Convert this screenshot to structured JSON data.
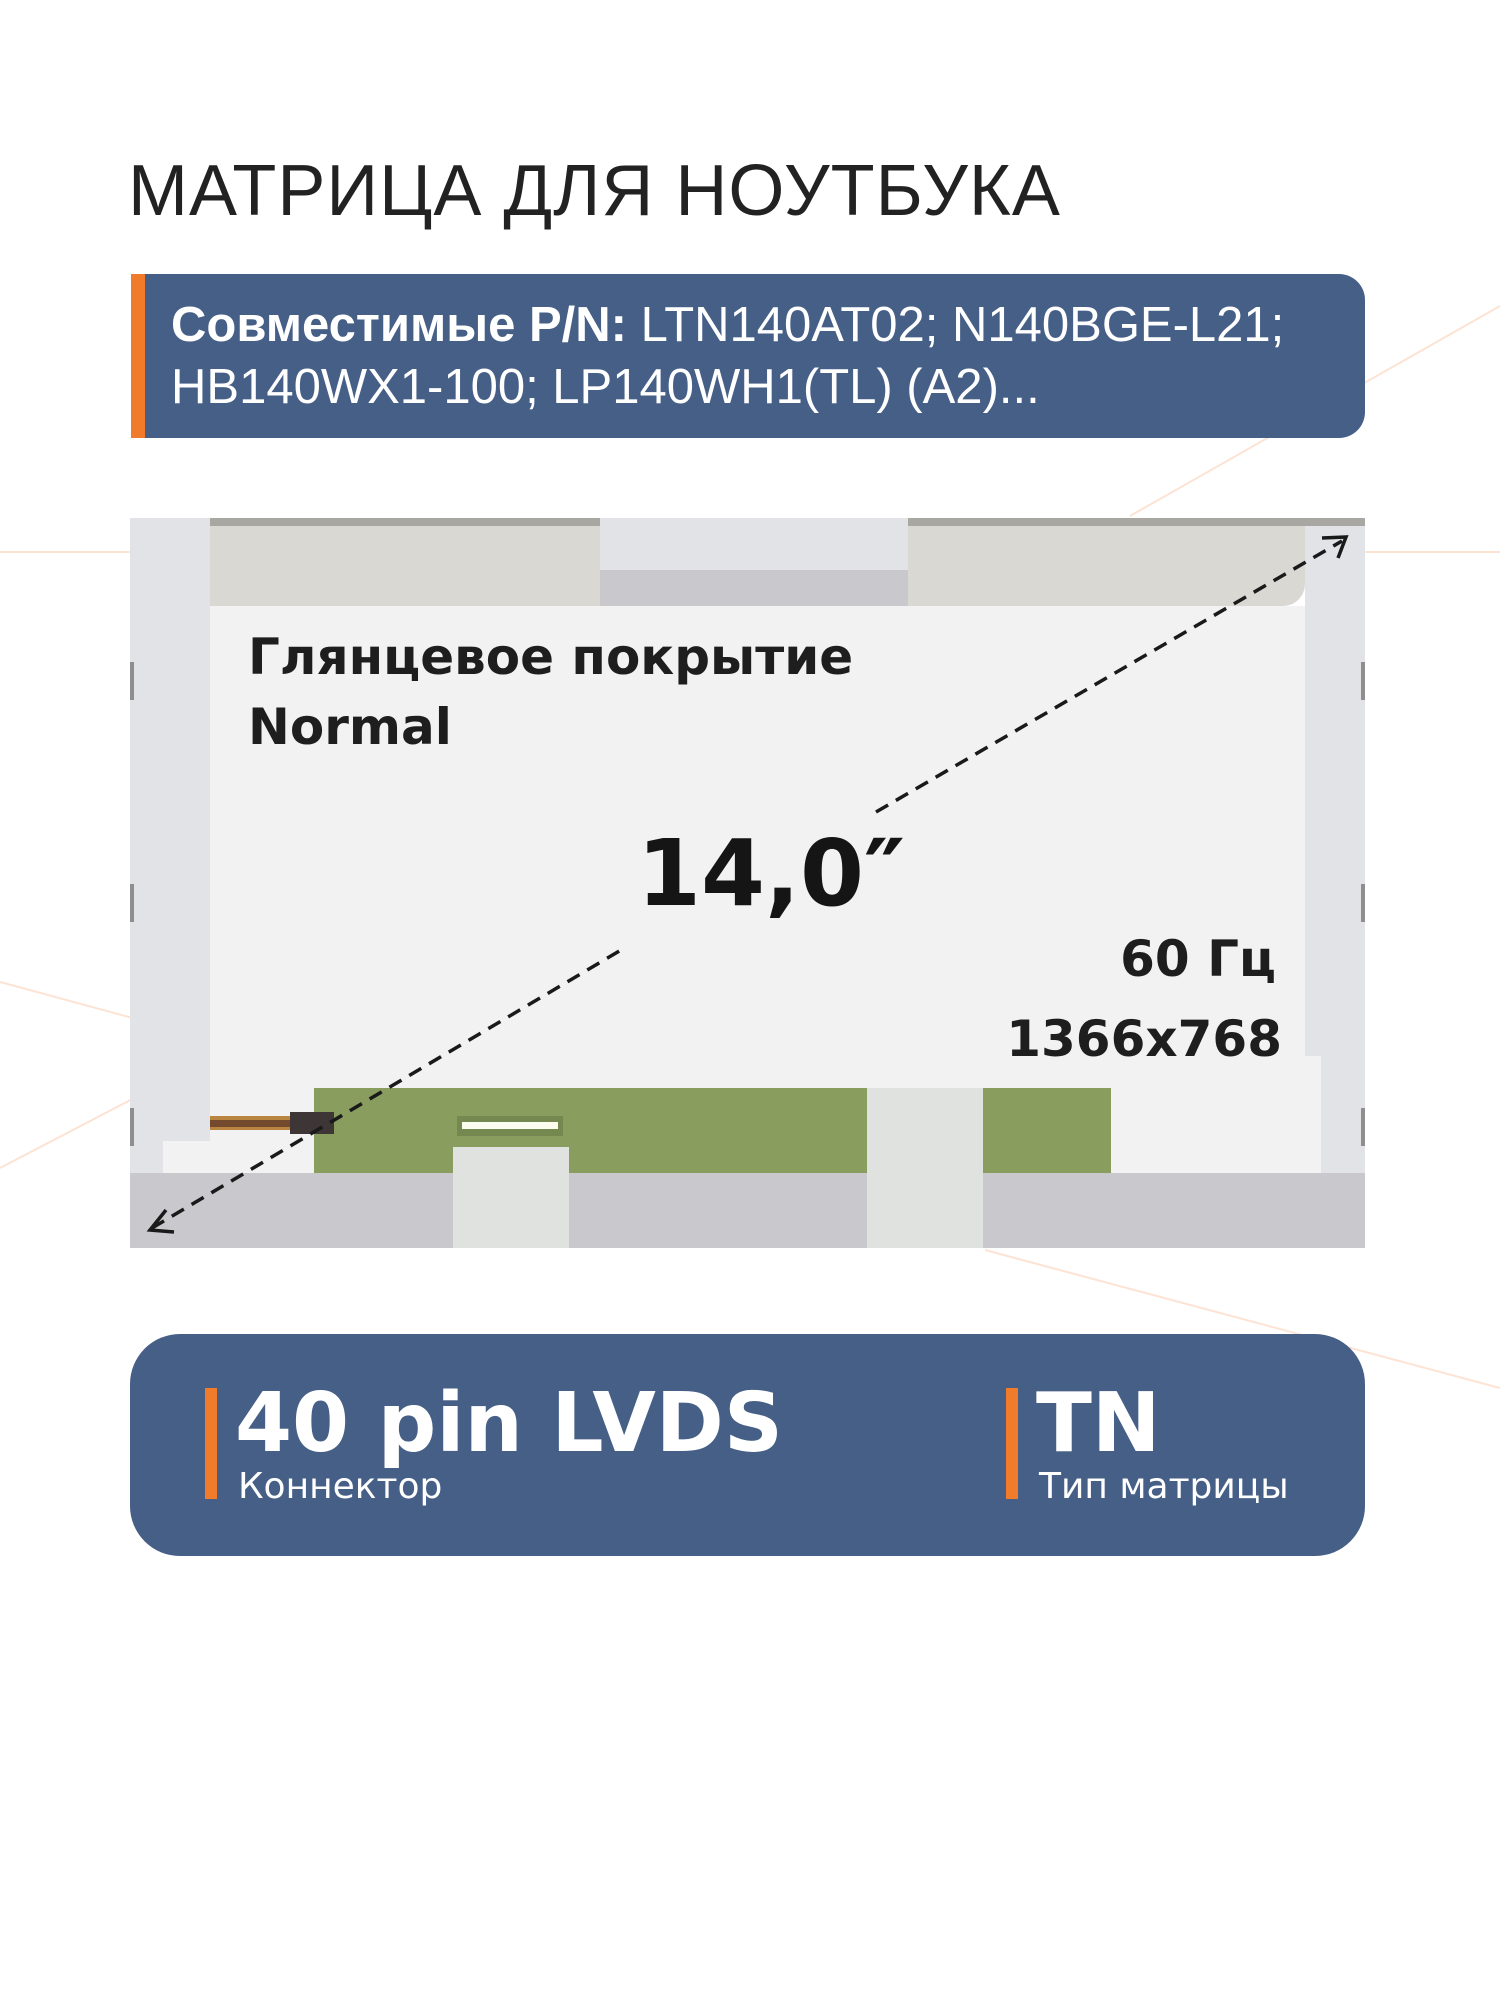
{
  "title": "МАТРИЦА ДЛЯ НОУТБУКА",
  "compatible": {
    "label": "Совместимые P/N:",
    "line1": " LTN140AT02; N140BGE-L21;",
    "line2": "HB140WX1-100; LP140WH1(TL) (A2)..."
  },
  "panel": {
    "coating": "Глянцевое покрытие",
    "coating_type": "Normal",
    "diagonal": "14,0″",
    "refresh_rate": "60 Гц",
    "resolution": "1366x768"
  },
  "specs": [
    {
      "value": "40 pin LVDS",
      "label": "Коннектор"
    },
    {
      "value": "TN",
      "label": "Тип матрицы"
    }
  ],
  "colors": {
    "accent": "#f07b2a",
    "box": "#465f87",
    "pcb": "#899d5f"
  }
}
